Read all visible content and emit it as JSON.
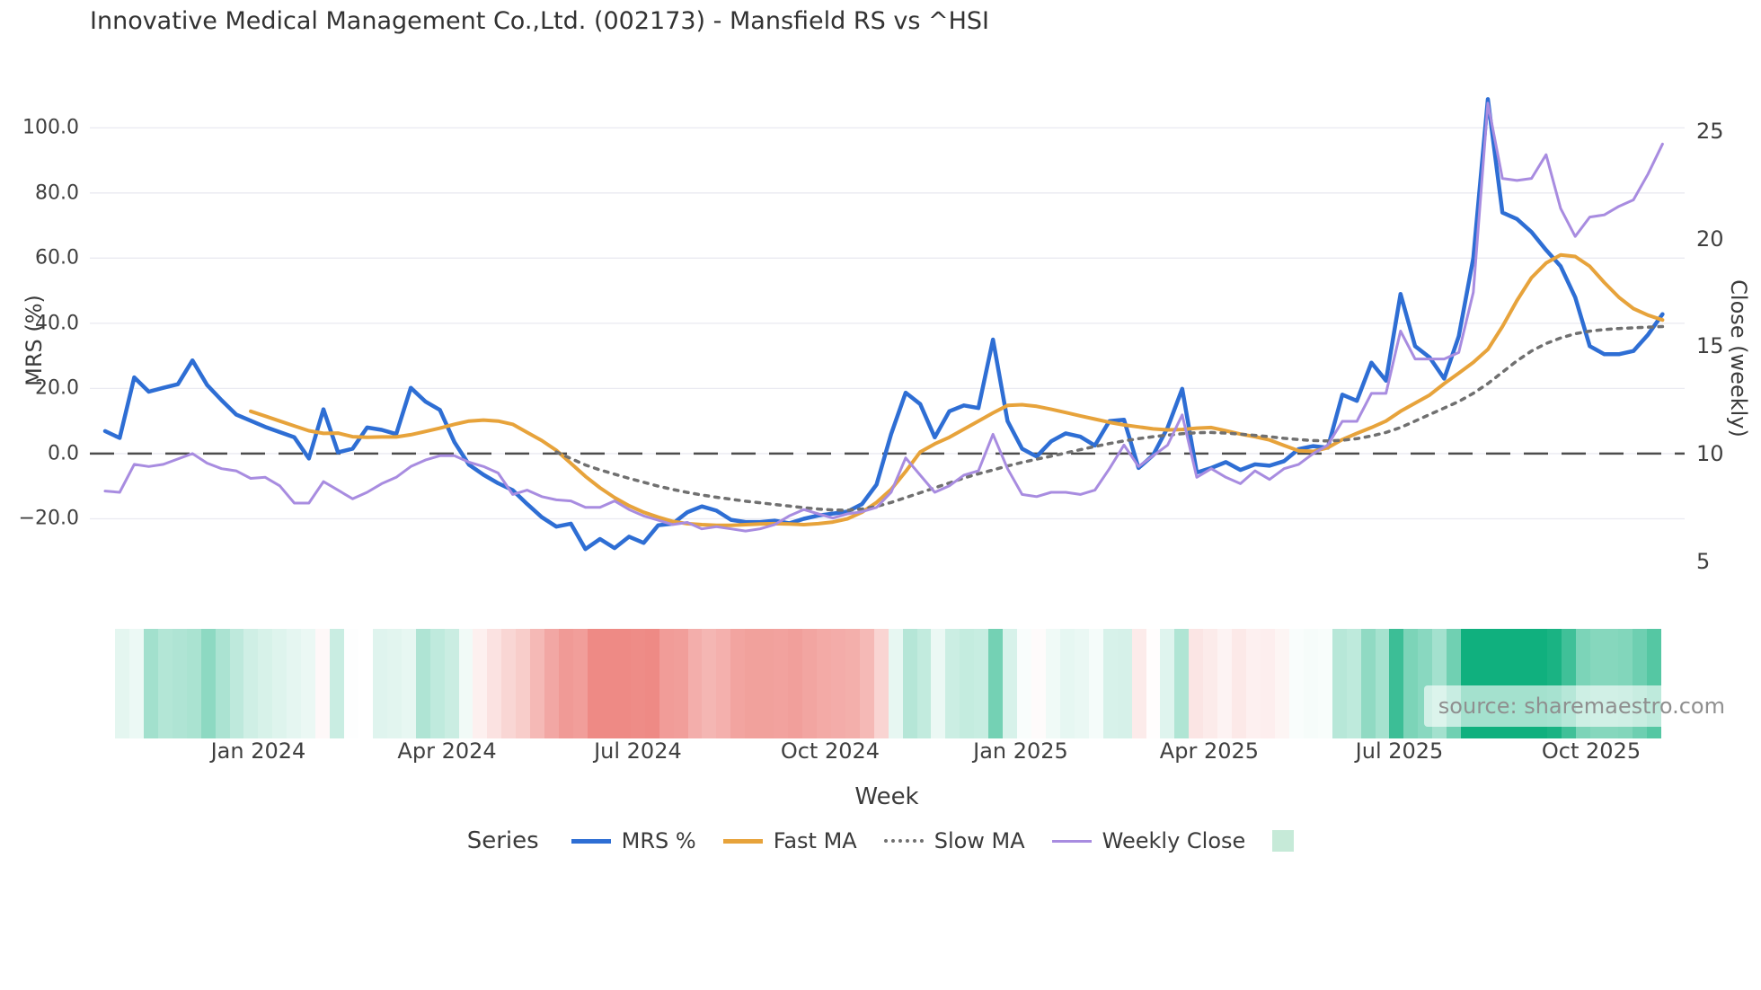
{
  "page": {
    "source_note": "source: sharemaestro.com"
  },
  "chart_data": {
    "type": "line",
    "title": "Innovative Medical Management Co.,Ltd. (002173) - Mansfield RS vs ^HSI",
    "xlabel": "Week",
    "legend_title": "Series",
    "grid": true,
    "legend_position": "bottom-center",
    "x_tick_labels": [
      "Jan 2024",
      "Apr 2024",
      "Jul 2024",
      "Oct 2024",
      "Jan 2025",
      "Apr 2025",
      "Jul 2025",
      "Oct 2025"
    ],
    "x_tick_week_positions": [
      10.52,
      23.49,
      36.6,
      49.81,
      62.9,
      75.86,
      88.92,
      102.1
    ],
    "left_axis": {
      "title": "MRS (%)",
      "range": [
        -40,
        110
      ],
      "ticks": [
        {
          "value": 100,
          "label": "100.0"
        },
        {
          "value": 80,
          "label": "80.0"
        },
        {
          "value": 60,
          "label": "60.0"
        },
        {
          "value": 40,
          "label": "40.0"
        },
        {
          "value": 20,
          "label": "20.0"
        },
        {
          "value": 0,
          "label": "0.0"
        },
        {
          "value": -20,
          "label": "−20.0"
        }
      ],
      "zero_line": {
        "color": "#4d4d4d",
        "dash": "27 15",
        "width": 2.5
      }
    },
    "right_axis": {
      "title": "Close (weekly)",
      "ticks": [
        25,
        20,
        15,
        10,
        5
      ],
      "close_baseline": 10,
      "close_to_mrs_scale": 6.6
    },
    "series": [
      {
        "name": "MRS %",
        "axis": "left",
        "color": "#2e6ed4",
        "width": 4.5,
        "dash": null,
        "values": [
          6.9,
          4.8,
          23.4,
          19.0,
          20.2,
          21.3,
          28.6,
          21.1,
          16.4,
          12.0,
          10.1,
          8.2,
          6.6,
          5.0,
          -1.5,
          13.6,
          0.4,
          1.5,
          8.0,
          7.3,
          6.0,
          20.2,
          16.0,
          13.4,
          3.5,
          -3.4,
          -6.5,
          -9.1,
          -11.2,
          -15.5,
          -19.5,
          -22.4,
          -21.5,
          -29.3,
          -26.2,
          -29.0,
          -25.5,
          -27.4,
          -22.0,
          -21.5,
          -18.0,
          -16.2,
          -17.5,
          -20.3,
          -21.0,
          -21.0,
          -20.6,
          -21.4,
          -20.0,
          -19.0,
          -18.4,
          -17.8,
          -15.5,
          -9.5,
          6.0,
          18.7,
          15.2,
          5.0,
          13.0,
          14.8,
          14.0,
          35.0,
          10.0,
          1.5,
          -0.9,
          3.8,
          6.2,
          5.2,
          2.5,
          10.0,
          10.4,
          -4.4,
          -0.5,
          8.0,
          19.9,
          -5.8,
          -4.4,
          -2.6,
          -5.0,
          -3.3,
          -3.7,
          -2.3,
          1.4,
          2.3,
          1.8,
          18.1,
          16.2,
          27.9,
          22.4,
          49.0,
          33.0,
          29.5,
          23.0,
          36.0,
          60.0,
          108.8,
          74.0,
          72.0,
          68.0,
          62.5,
          57.5,
          48.0,
          33.0,
          30.5,
          30.5,
          31.5,
          36.5,
          42.8
        ]
      },
      {
        "name": "Fast MA",
        "axis": "left",
        "color": "#e7a33b",
        "width": 4,
        "dash": null,
        "values": [
          null,
          null,
          null,
          null,
          null,
          null,
          null,
          null,
          null,
          null,
          13.0,
          11.5,
          10.0,
          8.5,
          7.0,
          6.2,
          6.3,
          5.2,
          5.0,
          5.1,
          5.1,
          5.8,
          6.8,
          7.8,
          9.0,
          10.0,
          10.3,
          10.0,
          9.0,
          6.5,
          4.0,
          1.0,
          -3.0,
          -7.0,
          -10.5,
          -13.5,
          -16.0,
          -18.0,
          -19.5,
          -20.8,
          -21.5,
          -21.8,
          -22.0,
          -22.0,
          -21.8,
          -21.6,
          -21.5,
          -21.6,
          -21.8,
          -21.5,
          -21.0,
          -20.0,
          -18.0,
          -15.0,
          -11.0,
          -5.5,
          0.5,
          3.0,
          5.0,
          7.5,
          10.0,
          12.5,
          14.8,
          15.0,
          14.5,
          13.6,
          12.6,
          11.6,
          10.6,
          9.6,
          8.8,
          8.2,
          7.6,
          7.3,
          7.4,
          7.8,
          8.0,
          7.0,
          6.0,
          5.2,
          4.2,
          2.5,
          0.9,
          0.7,
          1.8,
          4.3,
          6.2,
          8.0,
          10.0,
          13.0,
          15.5,
          18.0,
          21.5,
          24.7,
          28.0,
          32.0,
          39.0,
          47.0,
          54.0,
          58.5,
          61.0,
          60.5,
          57.5,
          52.5,
          48.0,
          44.5,
          42.5,
          41.0
        ]
      },
      {
        "name": "Slow MA",
        "axis": "left",
        "color": "#707070",
        "width": 3.5,
        "dash": "4.5 7",
        "values": [
          null,
          null,
          null,
          null,
          null,
          null,
          null,
          null,
          null,
          null,
          null,
          null,
          null,
          null,
          null,
          null,
          null,
          null,
          null,
          null,
          null,
          null,
          null,
          null,
          null,
          null,
          null,
          null,
          null,
          null,
          null,
          0.5,
          -1.5,
          -3.5,
          -5.0,
          -6.3,
          -7.6,
          -8.8,
          -10.0,
          -11.0,
          -11.9,
          -12.7,
          -13.4,
          -14.0,
          -14.6,
          -15.1,
          -15.6,
          -16.1,
          -16.6,
          -17.0,
          -17.3,
          -17.4,
          -17.0,
          -16.2,
          -15.0,
          -13.5,
          -12.0,
          -10.5,
          -9.0,
          -7.5,
          -6.2,
          -5.0,
          -3.8,
          -2.7,
          -1.7,
          -0.8,
          0.2,
          1.2,
          2.2,
          3.1,
          3.9,
          4.6,
          5.2,
          5.7,
          6.1,
          6.4,
          6.5,
          6.3,
          6.0,
          5.6,
          5.2,
          4.7,
          4.3,
          4.0,
          3.9,
          4.1,
          4.6,
          5.4,
          6.5,
          8.0,
          10.0,
          12.0,
          14.0,
          16.0,
          18.5,
          21.5,
          25.0,
          28.5,
          31.5,
          33.8,
          35.5,
          36.8,
          37.6,
          38.1,
          38.4,
          38.6,
          38.8,
          39.0
        ]
      },
      {
        "name": "Weekly Close",
        "axis": "right",
        "color": "#a88ce0",
        "width": 3,
        "dash": null,
        "values": [
          8.26,
          8.2,
          9.5,
          9.4,
          9.5,
          9.75,
          10.0,
          9.56,
          9.3,
          9.2,
          8.85,
          8.9,
          8.5,
          7.7,
          7.7,
          8.7,
          8.3,
          7.9,
          8.2,
          8.6,
          8.9,
          9.4,
          9.7,
          9.9,
          9.9,
          9.6,
          9.4,
          9.1,
          8.1,
          8.3,
          8.0,
          7.85,
          7.8,
          7.5,
          7.5,
          7.8,
          7.4,
          7.1,
          6.9,
          6.7,
          6.8,
          6.5,
          6.6,
          6.5,
          6.4,
          6.5,
          6.7,
          7.1,
          7.4,
          7.2,
          7.0,
          7.2,
          7.3,
          7.5,
          8.2,
          9.8,
          9.0,
          8.2,
          8.5,
          9.0,
          9.2,
          10.9,
          9.3,
          8.1,
          8.0,
          8.2,
          8.2,
          8.1,
          8.3,
          9.3,
          10.4,
          9.4,
          9.9,
          10.4,
          11.8,
          8.9,
          9.3,
          8.9,
          8.6,
          9.2,
          8.8,
          9.3,
          9.5,
          10.0,
          10.4,
          11.5,
          11.5,
          12.8,
          12.8,
          15.7,
          14.4,
          14.4,
          14.4,
          14.7,
          17.5,
          26.3,
          22.8,
          22.7,
          22.8,
          23.9,
          21.4,
          20.1,
          21.0,
          21.1,
          21.5,
          21.8,
          23.0,
          24.4
        ]
      }
    ],
    "heatmap": {
      "description": "weekly MRS strip, green positive / red negative, white missing week",
      "positive_color": "#10b07e",
      "negative_color": "#ee8a85",
      "positive_saturation_value": 60,
      "negative_saturation_value": 26,
      "missing_week_index": 17,
      "values": [
        6.9,
        4.8,
        23.4,
        19.0,
        20.2,
        21.3,
        28.6,
        21.1,
        16.4,
        12.0,
        10.1,
        8.2,
        6.6,
        5.0,
        -1.5,
        13.6,
        0.4,
        null,
        8.0,
        7.3,
        6.0,
        20.2,
        16.0,
        13.4,
        3.5,
        -3.4,
        -6.5,
        -9.1,
        -11.2,
        -15.5,
        -19.5,
        -22.4,
        -21.5,
        -29.3,
        -26.2,
        -29.0,
        -25.5,
        -27.4,
        -22.0,
        -21.5,
        -18.0,
        -16.2,
        -17.5,
        -20.3,
        -21.0,
        -21.0,
        -20.6,
        -21.4,
        -20.0,
        -19.0,
        -18.4,
        -17.8,
        -15.5,
        -9.5,
        6.0,
        18.7,
        15.2,
        5.0,
        13.0,
        14.8,
        14.0,
        35.0,
        10.0,
        1.5,
        -0.9,
        3.8,
        6.2,
        5.2,
        2.5,
        10.0,
        10.4,
        -4.4,
        -0.5,
        8.0,
        19.9,
        -5.8,
        -4.4,
        -2.6,
        -5.0,
        -3.3,
        -3.7,
        -2.3,
        1.4,
        2.3,
        1.8,
        18.1,
        16.2,
        27.9,
        22.4,
        49.0,
        33.0,
        29.5,
        23.0,
        36.0,
        60.0,
        108.8,
        74.0,
        72.0,
        68.0,
        62.5,
        57.5,
        48.0,
        33.0,
        30.5,
        30.5,
        31.5,
        36.5,
        42.8
      ]
    },
    "legend_extra_swatch_color": "#c6ead8",
    "gridline_color": "#eaeaf1"
  }
}
